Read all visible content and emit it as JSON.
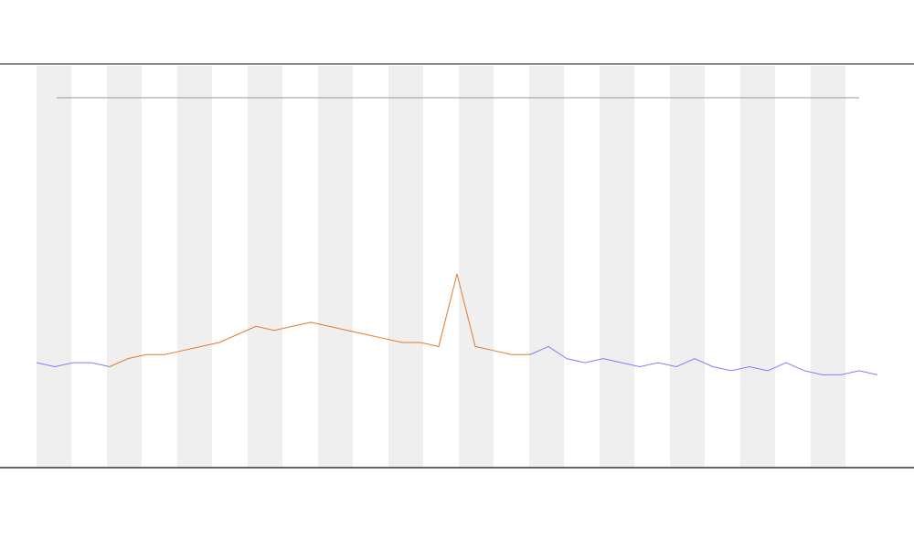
{
  "chart_data": {
    "type": "line",
    "x": [
      0,
      1,
      2,
      3,
      4,
      5,
      6,
      7,
      8,
      9,
      10,
      11,
      12,
      13,
      14,
      15,
      16,
      17,
      18,
      19,
      20,
      21,
      22,
      23,
      24,
      25,
      26,
      27,
      28,
      29,
      30,
      31,
      32,
      33,
      34,
      35,
      36,
      37,
      38,
      39,
      40,
      41,
      42,
      43,
      44,
      45,
      46
    ],
    "xlim": [
      0,
      46
    ],
    "ylim": [
      0,
      100
    ],
    "series": [
      {
        "color": "#8080f0",
        "values": [
          26,
          25,
          26,
          26,
          25,
          null,
          null,
          null,
          null,
          null,
          null,
          null,
          null,
          null,
          null,
          null,
          null,
          null,
          null,
          null,
          null,
          null,
          null,
          null,
          null,
          null,
          null,
          28,
          30,
          27,
          26,
          27,
          26,
          25,
          26,
          25,
          27,
          25,
          24,
          25,
          24,
          26,
          24,
          23,
          23,
          24,
          23
        ]
      },
      {
        "color": "#e07a30",
        "values": [
          null,
          null,
          null,
          null,
          25,
          27,
          28,
          28,
          29,
          30,
          31,
          33,
          35,
          34,
          35,
          36,
          35,
          34,
          33,
          32,
          31,
          31,
          30,
          48,
          30,
          29,
          28,
          28,
          null,
          null,
          null,
          null,
          null,
          null,
          null,
          null,
          null,
          null,
          null,
          null,
          null,
          null,
          null,
          null,
          null,
          null,
          null
        ]
      }
    ]
  }
}
